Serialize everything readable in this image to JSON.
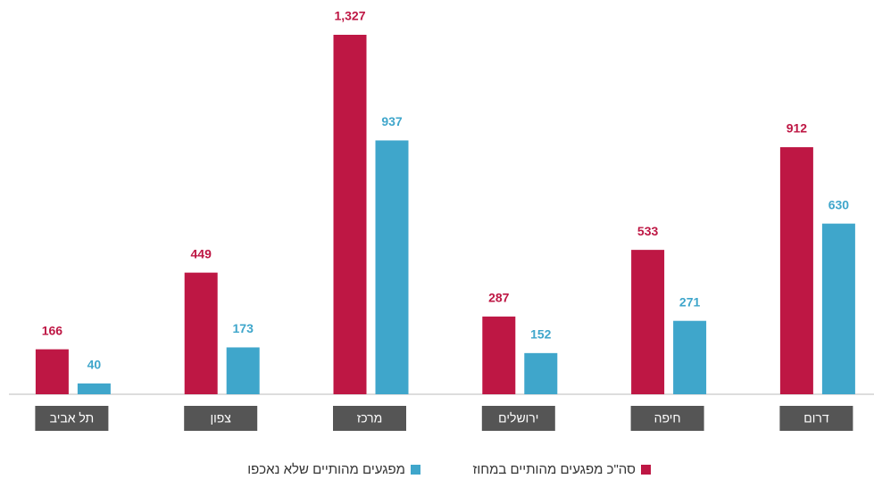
{
  "chart_data": {
    "type": "bar",
    "categories": [
      "תל אביב",
      "צפון",
      "מרכז",
      "ירושלים",
      "חיפה",
      "דרום"
    ],
    "series": [
      {
        "name": "סה\"כ מפגעים מהותיים במחוז",
        "color": "#be1744",
        "values": [
          166,
          449,
          1327,
          287,
          533,
          912
        ],
        "value_labels": [
          "166",
          "449",
          "1,327",
          "287",
          "533",
          "912"
        ]
      },
      {
        "name": "מפגעים מהותיים שלא נאכפו",
        "color": "#3fa6cb",
        "values": [
          40,
          173,
          937,
          152,
          271,
          630
        ]
      }
    ]
  }
}
